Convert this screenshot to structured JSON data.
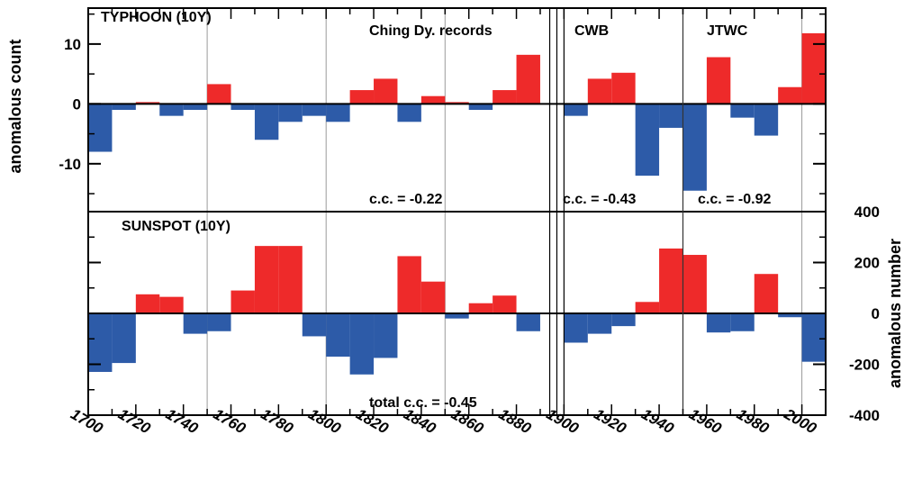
{
  "colors": {
    "positive": "#ee2a2a",
    "negative": "#2d5ba8",
    "frame": "#000000",
    "gridline": "#9a9a9a"
  },
  "chart_data": [
    {
      "panel": "top",
      "type": "bar",
      "label": "TYPHOON (10Y)",
      "ylabel": "anomalous count",
      "ylim": [
        -18,
        16
      ],
      "yticks": [
        10,
        0,
        -10
      ],
      "ytick_labels": [
        "10",
        "0",
        "-10"
      ],
      "sections": [
        "Ching Dy. records",
        "CWB",
        "JTWC"
      ],
      "annotations": [
        "c.c. = -0.22",
        "c.c. = -0.43",
        "c.c. = -0.92"
      ],
      "bar_width_years": 10,
      "bar_starts": [
        1700,
        1710,
        1720,
        1730,
        1740,
        1750,
        1760,
        1770,
        1780,
        1790,
        1800,
        1810,
        1820,
        1830,
        1840,
        1850,
        1860,
        1870,
        1880,
        1900,
        1910,
        1920,
        1930,
        1940,
        1950,
        1960,
        1970,
        1980,
        1990,
        2000
      ],
      "values": [
        -8,
        -1,
        0.3,
        -2,
        -1,
        3.3,
        -1,
        -6,
        -3,
        -2,
        -3,
        2.3,
        4.2,
        -3,
        1.3,
        0.3,
        -1,
        2.3,
        8.2,
        -2,
        4.2,
        5.2,
        -12,
        -4,
        -14.5,
        7.8,
        -2.3,
        -5.3,
        2.8,
        11.8
      ]
    },
    {
      "panel": "bottom",
      "type": "bar",
      "label": "SUNSPOT (10Y)",
      "ylabel": "anomalous number",
      "ylim": [
        -400,
        400
      ],
      "yticks": [
        400,
        200,
        0,
        -200,
        -400
      ],
      "ytick_labels": [
        "400",
        "200",
        "0",
        "-200",
        "-400"
      ],
      "annotations": [
        "total c.c. = -0.45"
      ],
      "bar_width_years": 10,
      "bar_starts": [
        1700,
        1710,
        1720,
        1730,
        1740,
        1750,
        1760,
        1770,
        1780,
        1790,
        1800,
        1810,
        1820,
        1830,
        1840,
        1850,
        1860,
        1870,
        1880,
        1900,
        1910,
        1920,
        1930,
        1940,
        1950,
        1960,
        1970,
        1980,
        1990,
        2000
      ],
      "values": [
        -230,
        -195,
        75,
        65,
        -80,
        -70,
        90,
        265,
        265,
        -90,
        -170,
        -240,
        -175,
        225,
        125,
        -20,
        40,
        70,
        -70,
        -115,
        -80,
        -50,
        45,
        255,
        230,
        -75,
        -70,
        155,
        -15,
        -190
      ]
    }
  ],
  "xaxis": {
    "ticks": [
      1700,
      1720,
      1740,
      1760,
      1780,
      1800,
      1820,
      1840,
      1860,
      1880,
      1900,
      1920,
      1940,
      1960,
      1980,
      2000
    ],
    "tick_labels": [
      "1700",
      "1720",
      "1740",
      "1760",
      "1780",
      "1800",
      "1820",
      "1840",
      "1860",
      "1880",
      "1900",
      "1920",
      "1940",
      "1960",
      "1980",
      "2000"
    ],
    "range": [
      1700,
      2010
    ]
  }
}
